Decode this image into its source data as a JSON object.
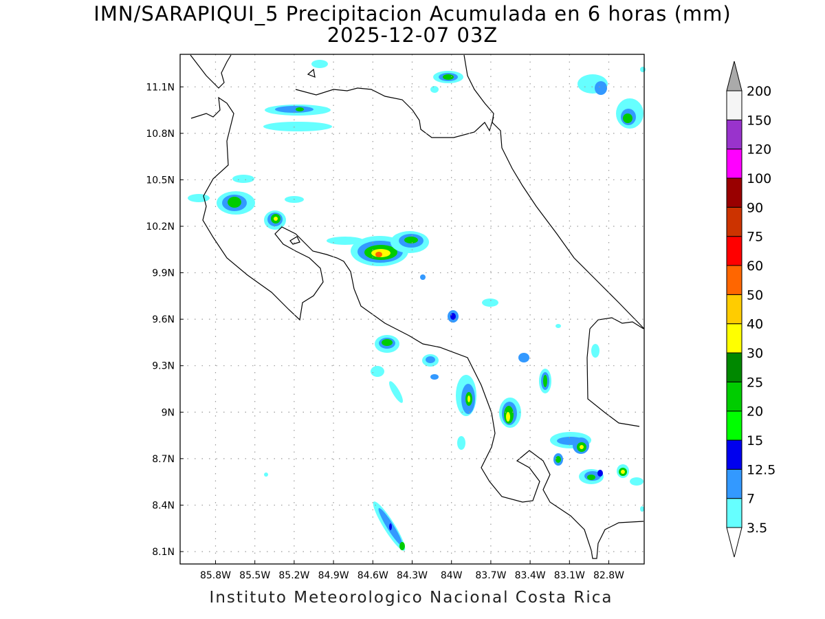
{
  "title_line1": "IMN/SARAPIQUI_5 Precipitacion Acumulada en 6 horas (mm)",
  "title_line2": "2025-12-07 03Z",
  "footer": "Instituto Meteorologico Nacional Costa Rica",
  "map": {
    "lon_range": [
      -86.07,
      -82.53
    ],
    "lat_range": [
      8.02,
      11.31
    ],
    "lat_ticks": [
      {
        "value": 11.1,
        "label": "11.1N"
      },
      {
        "value": 10.8,
        "label": "10.8N"
      },
      {
        "value": 10.5,
        "label": "10.5N"
      },
      {
        "value": 10.2,
        "label": "10.2N"
      },
      {
        "value": 9.9,
        "label": "9.9N"
      },
      {
        "value": 9.6,
        "label": "9.6N"
      },
      {
        "value": 9.3,
        "label": "9.3N"
      },
      {
        "value": 9.0,
        "label": "9N"
      },
      {
        "value": 8.7,
        "label": "8.7N"
      },
      {
        "value": 8.4,
        "label": "8.4N"
      },
      {
        "value": 8.1,
        "label": "8.1N"
      }
    ],
    "lon_ticks": [
      {
        "value": -85.8,
        "label": "85.8W"
      },
      {
        "value": -85.5,
        "label": "85.5W"
      },
      {
        "value": -85.2,
        "label": "85.2W"
      },
      {
        "value": -84.9,
        "label": "84.9W"
      },
      {
        "value": -84.6,
        "label": "84.6W"
      },
      {
        "value": -84.3,
        "label": "84.3W"
      },
      {
        "value": -84.0,
        "label": "84W"
      },
      {
        "value": -83.7,
        "label": "83.7W"
      },
      {
        "value": -83.4,
        "label": "83.4W"
      },
      {
        "value": -83.1,
        "label": "83.1W"
      },
      {
        "value": -82.8,
        "label": "82.8W"
      }
    ],
    "grid": "dotted"
  },
  "colorbar": {
    "labels": [
      "3.5",
      "7",
      "12.5",
      "15",
      "20",
      "25",
      "30",
      "40",
      "50",
      "60",
      "75",
      "90",
      "100",
      "120",
      "150",
      "200"
    ],
    "colors": [
      "#66ffff",
      "#3399ff",
      "#0000ee",
      "#00ff00",
      "#00cc00",
      "#008800",
      "#ffff00",
      "#ffcc00",
      "#ff6600",
      "#ff0000",
      "#cc3300",
      "#990000",
      "#ff00ff",
      "#9933cc",
      "#f5f5f5",
      "#aaaaaa"
    ]
  }
}
